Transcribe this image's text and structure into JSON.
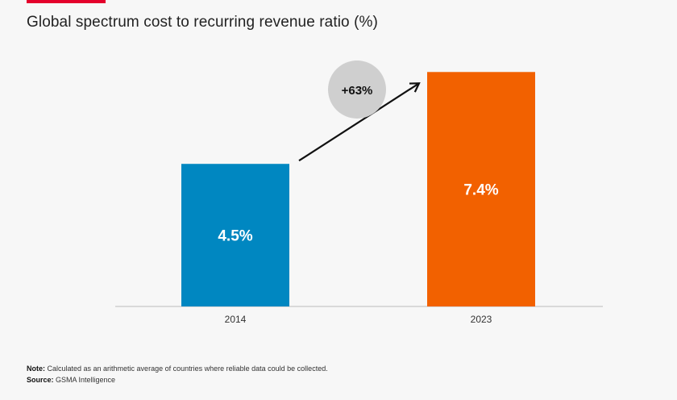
{
  "header": {
    "title": "Global spectrum cost to recurring revenue ratio (%)"
  },
  "chart_data": {
    "type": "bar",
    "title": "Global spectrum cost to recurring revenue ratio (%)",
    "categories": [
      "2014",
      "2023"
    ],
    "values": [
      4.5,
      7.4
    ],
    "value_labels": [
      "4.5%",
      "7.4%"
    ],
    "colors": [
      "#0087c1",
      "#f26100"
    ],
    "ylim": [
      0,
      8.4
    ],
    "xlabel": "",
    "ylabel": "",
    "annotation": {
      "text": "+63%",
      "from": "2014",
      "to": "2023"
    }
  },
  "footer": {
    "note_label": "Note:",
    "note_text": " Calculated as an arithmetic average of countries where reliable data could be collected.",
    "source_label": "Source:",
    "source_text": " GSMA Intelligence"
  }
}
